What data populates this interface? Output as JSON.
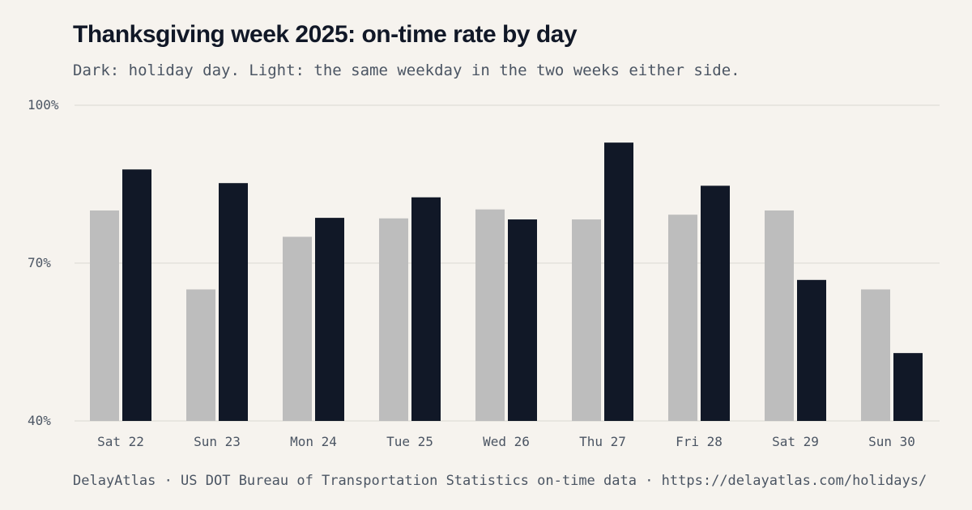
{
  "title": "Thanksgiving week 2025: on-time rate by day",
  "subtitle": "Dark: holiday day. Light: the same weekday in the two weeks either side.",
  "footer": "DelayAtlas · US DOT Bureau of Transportation Statistics on-time data · https://delayatlas.com/holidays/",
  "colors": {
    "background": "#f6f3ee",
    "baseline": "#bdbdbd",
    "holiday": "#111827",
    "grid": "#e4e1dc",
    "text": "#4b5563"
  },
  "chart_data": {
    "type": "bar",
    "categories": [
      "Sat 22",
      "Sun 23",
      "Mon 24",
      "Tue 25",
      "Wed 26",
      "Thu 27",
      "Fri 28",
      "Sat 29",
      "Sun 30"
    ],
    "series": [
      {
        "values": [
          80,
          65,
          75,
          78.5,
          80.2,
          78.3,
          79.2,
          80,
          65
        ]
      },
      {
        "values": [
          87.8,
          85.2,
          78.6,
          82.5,
          78.3,
          92.9,
          84.7,
          66.8,
          52.9
        ]
      }
    ],
    "ylim": [
      40,
      100
    ],
    "yticks": [
      "40%",
      "70%",
      "100%"
    ],
    "ytick_values": [
      40,
      70,
      100
    ],
    "grid": true
  }
}
